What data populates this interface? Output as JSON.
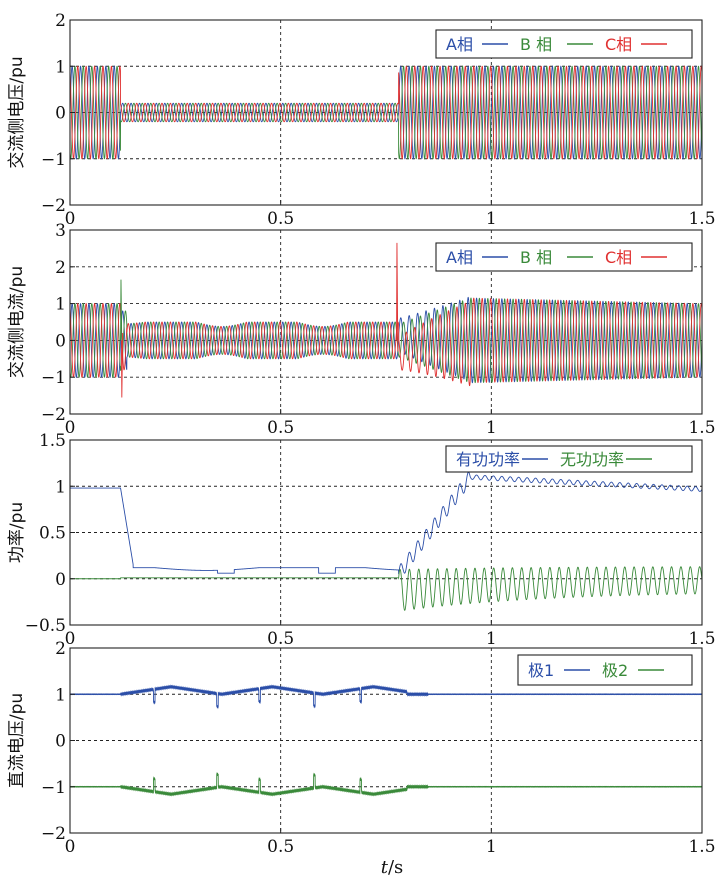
{
  "figure": {
    "xlabel_italic": "t",
    "xlabel_unit": "/s"
  },
  "chart_data": [
    {
      "type": "line",
      "title": "",
      "ylabel": "交流侧电压/pu",
      "xlim": [
        0,
        1.5
      ],
      "ylim": [
        -2,
        2
      ],
      "xticks": [
        "0",
        "0.5",
        "1",
        "1.5"
      ],
      "yticks": [
        "2",
        "1",
        "0",
        "−1",
        "−2"
      ],
      "grid": true,
      "legend_position": "top-right",
      "series": [
        {
          "name": "A相",
          "color": "#2b4ea8",
          "description": "three-phase AC voltage: amplitude 1 pu, drops to 0.2 pu between t=0.12 s and t=0.78 s"
        },
        {
          "name": "B 相",
          "color": "#3a8a3a"
        },
        {
          "name": "C相",
          "color": "#e03030"
        }
      ],
      "events": {
        "fault_start": 0.12,
        "fault_end": 0.78
      },
      "amplitude_normal": 1.0,
      "amplitude_fault": 0.2
    },
    {
      "type": "line",
      "title": "",
      "ylabel": "交流侧电流/pu",
      "xlim": [
        0,
        1.5
      ],
      "ylim": [
        -2,
        3
      ],
      "xticks": [
        "0",
        "0.5",
        "1",
        "1.5"
      ],
      "yticks": [
        "3",
        "2",
        "1",
        "0",
        "−1",
        "−2"
      ],
      "grid": true,
      "legend_position": "top-right",
      "series": [
        {
          "name": "A相",
          "color": "#2b4ea8"
        },
        {
          "name": "B 相",
          "color": "#3a8a3a"
        },
        {
          "name": "C相",
          "color": "#e03030"
        }
      ],
      "amplitude_normal": 1.0,
      "amplitude_fault": 0.5,
      "peak_spike": 2.65,
      "recovery_peak": 1.15
    },
    {
      "type": "line",
      "title": "",
      "ylabel": "功率/pu",
      "xlim": [
        0,
        1.5
      ],
      "ylim": [
        -0.5,
        1.5
      ],
      "xticks": [
        "0",
        "0.5",
        "1",
        "1.5"
      ],
      "yticks": [
        "1.5",
        "1",
        "0.5",
        "0",
        "−0.5"
      ],
      "grid": true,
      "legend_position": "top-right",
      "series": [
        {
          "name": "有功功率",
          "color": "#2b4ea8",
          "pre_fault": 0.98,
          "fault": 0.1,
          "recovery_peak": 1.1,
          "final": 0.97
        },
        {
          "name": "无功功率",
          "color": "#3a8a3a",
          "pre_fault": 0.0,
          "fault": 0.0,
          "recovery_oscillation": [
            -0.35,
            0.1
          ]
        }
      ]
    },
    {
      "type": "line",
      "title": "",
      "ylabel": "直流电压/pu",
      "xlim": [
        0,
        1.5
      ],
      "ylim": [
        -2,
        2
      ],
      "xticks": [
        "0",
        "0.5",
        "1",
        "1.5"
      ],
      "yticks": [
        "2",
        "1",
        "0",
        "−1",
        "−2"
      ],
      "grid": true,
      "legend_position": "top-right",
      "series": [
        {
          "name": "极1",
          "color": "#2b4ea8",
          "nominal": 1.0,
          "max_ripple": 0.18
        },
        {
          "name": "极2",
          "color": "#3a8a3a",
          "nominal": -1.0,
          "max_ripple": 0.18
        }
      ]
    }
  ]
}
